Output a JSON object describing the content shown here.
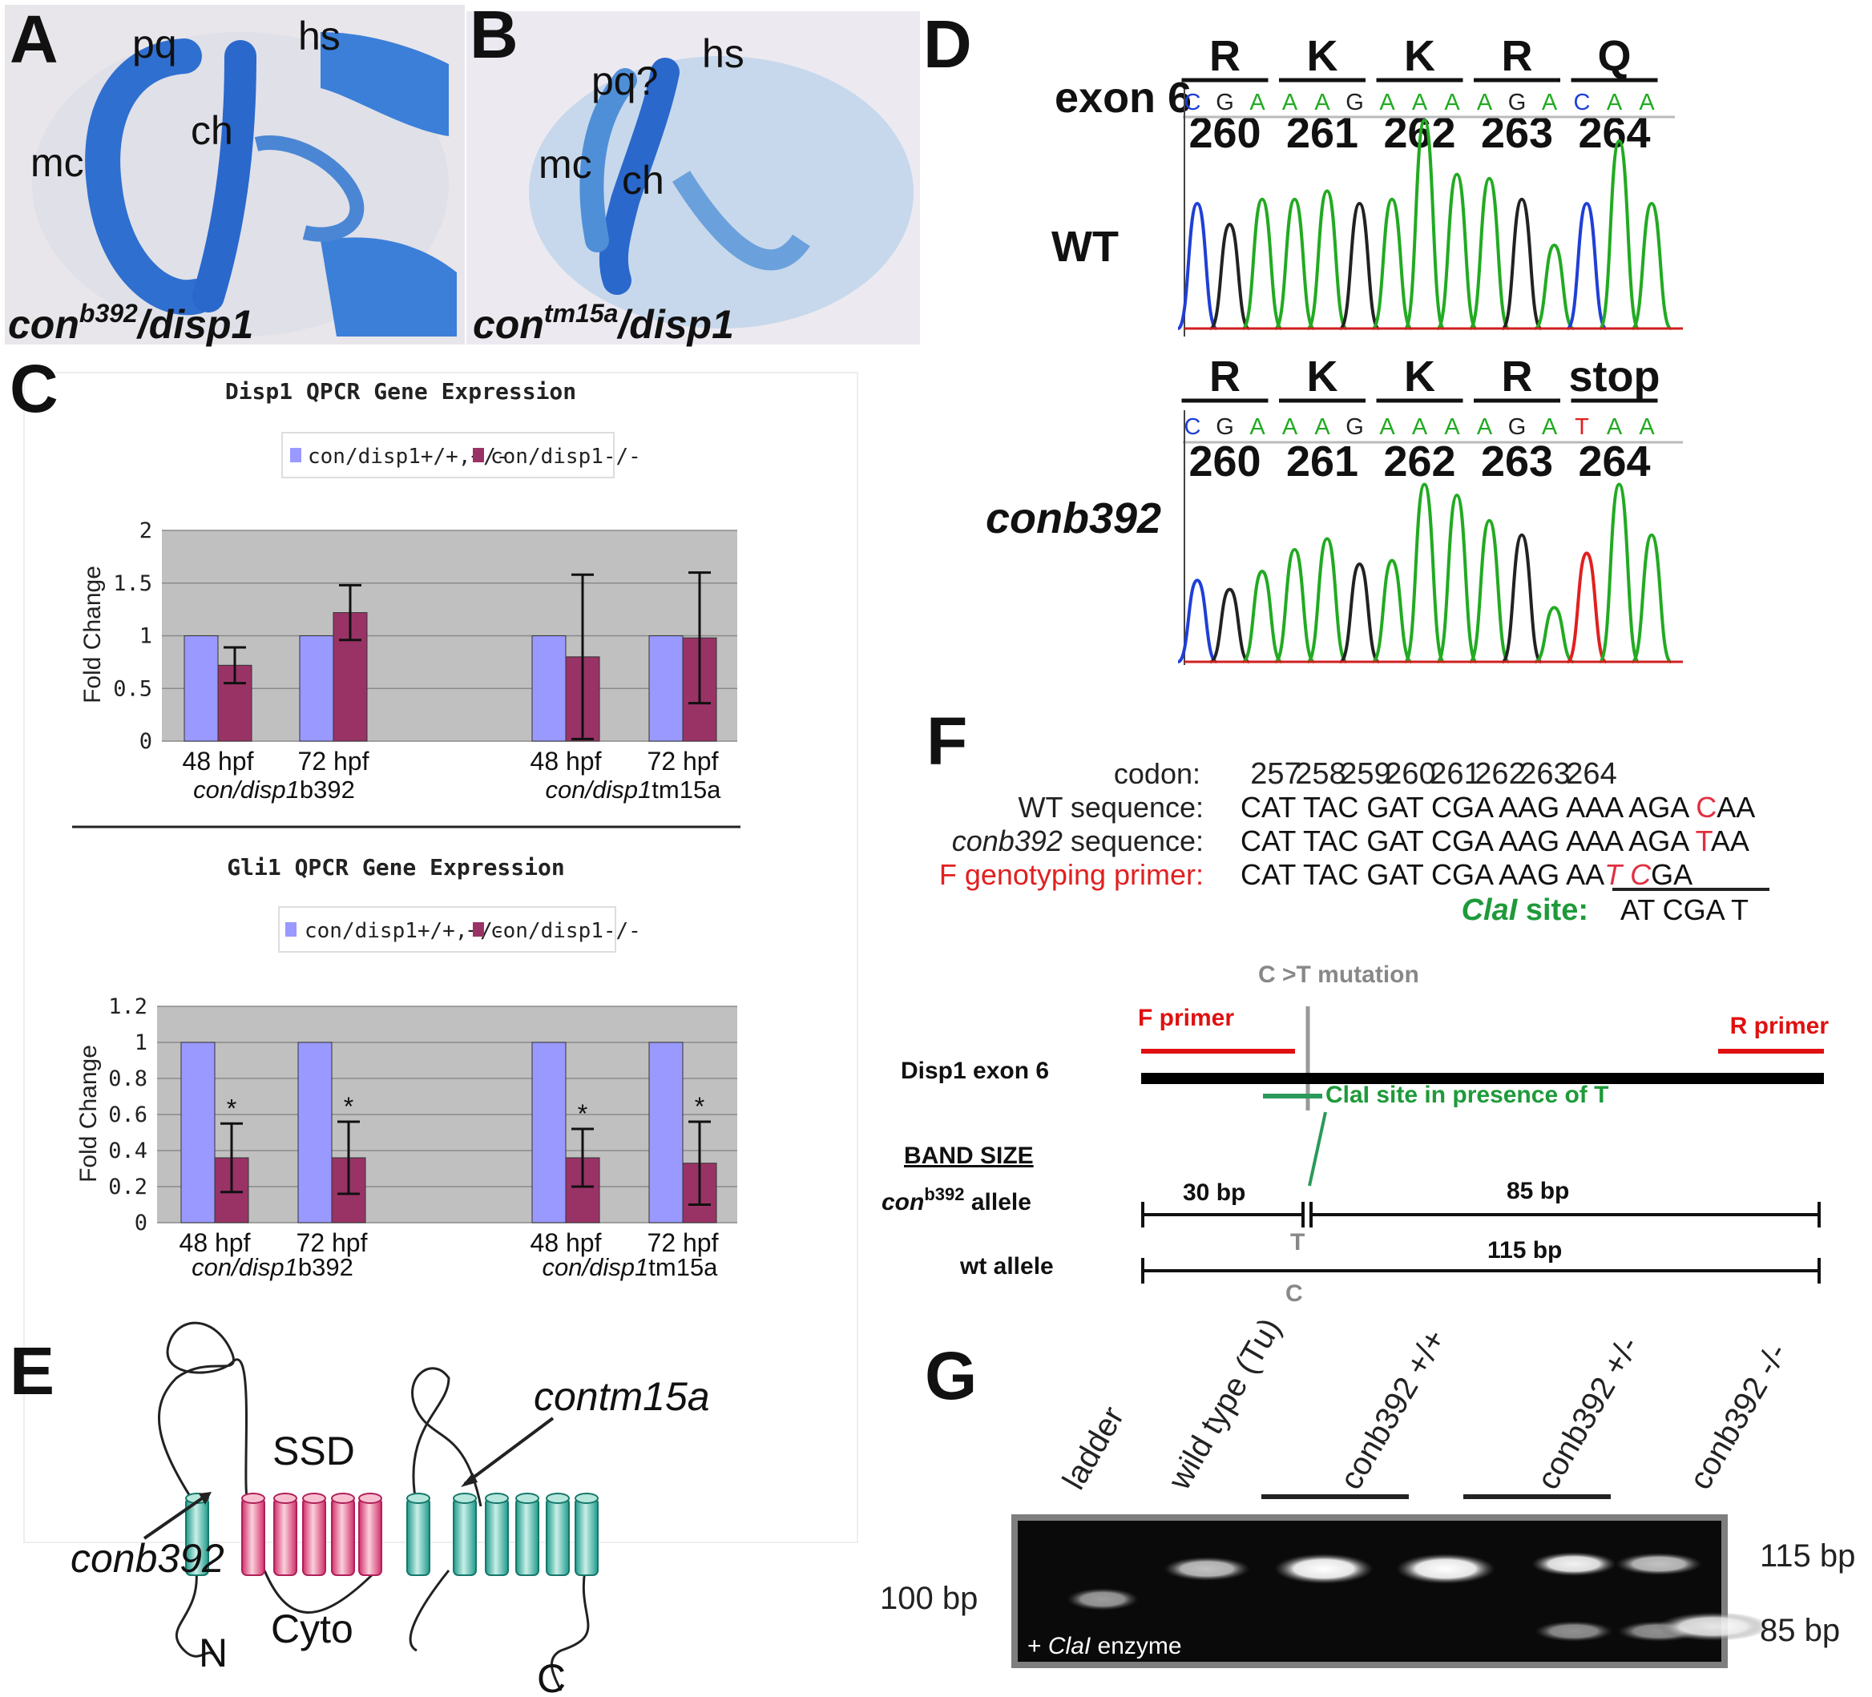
{
  "panels": {
    "A": "A",
    "B": "B",
    "C": "C",
    "D": "D",
    "E": "E",
    "F": "F",
    "G": "G"
  },
  "panel_A": {
    "pq": "pq",
    "hs": "hs",
    "mc": "mc",
    "ch": "ch",
    "genotype_prefix": "con",
    "genotype_sup": "b392",
    "genotype_suffix": "/disp1"
  },
  "panel_B": {
    "pq": "pq?",
    "hs": "hs",
    "mc": "mc",
    "ch": "ch",
    "genotype_prefix": "con",
    "genotype_sup": "tm15a",
    "genotype_suffix": "/disp1"
  },
  "panel_C": {
    "legend": [
      "con/disp1+/+,+/-",
      "con/disp1-/-"
    ],
    "groups": [
      {
        "prefix": "con/",
        "mid": "disp1",
        "suffix": "b392"
      },
      {
        "prefix": "con/",
        "mid": "disp1",
        "suffix": "tm15a"
      }
    ],
    "star": "*"
  },
  "chart_data": [
    {
      "type": "bar",
      "title": "Disp1 QPCR Gene Expression",
      "ylabel": "Fold Change",
      "ylim": [
        0,
        2
      ],
      "yticks": [
        "0",
        "0.5",
        "1",
        "1.5",
        "2"
      ],
      "categories": [
        "48 hpf",
        "72 hpf",
        "48 hpf",
        "72 hpf"
      ],
      "series": [
        {
          "name": "con/disp1+/+,+/-",
          "values": [
            1,
            1,
            1,
            1
          ],
          "color": "#9999ff"
        },
        {
          "name": "con/disp1-/-",
          "values": [
            0.72,
            1.22,
            0.8,
            0.98
          ],
          "error": [
            0.17,
            0.26,
            0.78,
            0.62
          ],
          "color": "#993366"
        }
      ],
      "grid": true,
      "legend_position": "top"
    },
    {
      "type": "bar",
      "title": "Gli1 QPCR Gene Expression",
      "ylabel": "Fold Change",
      "ylim": [
        0,
        1.2
      ],
      "yticks": [
        "0",
        "0.2",
        "0.4",
        "0.6",
        "0.8",
        "1",
        "1.2"
      ],
      "categories": [
        "48 hpf",
        "72 hpf",
        "48 hpf",
        "72 hpf"
      ],
      "series": [
        {
          "name": "con/disp1+/+,+/-",
          "values": [
            1,
            1,
            1,
            1
          ],
          "color": "#9999ff"
        },
        {
          "name": "con/disp1-/-",
          "values": [
            0.36,
            0.36,
            0.36,
            0.33
          ],
          "error": [
            0.19,
            0.2,
            0.16,
            0.23
          ],
          "color": "#993366"
        }
      ],
      "significance": [
        "*",
        "*",
        "*",
        "*"
      ],
      "grid": true,
      "legend_position": "top"
    }
  ],
  "panel_D": {
    "exon_label": "exon 6",
    "wt_label": "WT",
    "mut_label": "conb392",
    "wt_aa": [
      "R",
      "K",
      "K",
      "R",
      "Q"
    ],
    "mut_aa": [
      "R",
      "K",
      "K",
      "R",
      "stop"
    ],
    "codon_numbers": [
      "260",
      "261",
      "262",
      "263",
      "264"
    ],
    "wt_bases": [
      "C",
      "G",
      "A",
      "A",
      "A",
      "G",
      "A",
      "A",
      "A",
      "A",
      "G",
      "A",
      "C",
      "A",
      "A"
    ],
    "mut_bases": [
      "C",
      "G",
      "A",
      "A",
      "A",
      "G",
      "A",
      "A",
      "A",
      "A",
      "G",
      "A",
      "T",
      "A",
      "A"
    ],
    "base_colors": {
      "A": "#22aa22",
      "G": "#222222",
      "C": "#1f3fd6",
      "T": "#e02020"
    }
  },
  "panel_E": {
    "ssd": "SSD",
    "cyto": "Cyto",
    "n": "N",
    "c": "C",
    "mut1": "contm15a",
    "mut2": "conb392"
  },
  "panel_F": {
    "codon_label": "codon:",
    "codons": [
      "257",
      "258",
      "259",
      "260",
      "261",
      "262",
      "263",
      "264"
    ],
    "wt_label": "WT sequence:",
    "wt_seq_prefix": "CAT TAC GAT CGA AAG AAA AGA ",
    "wt_seq_mut": "C",
    "wt_seq_suffix": "AA",
    "mut_label_italic": "conb392",
    "mut_label_rest": " sequence:",
    "mut_seq_prefix": "CAT TAC GAT CGA AAG AAA AGA ",
    "mut_seq_mut": "T",
    "mut_seq_suffix": "AA",
    "primer_label": "F genotyping primer:",
    "primer_prefix": "CAT TAC GAT CGA AAG AA",
    "primer_T": "T",
    "primer_C": "C",
    "primer_suffix": "GA",
    "clai_italic": "ClaI",
    "clai_rest": " site:",
    "clai_seq": "AT CGA T",
    "mutation": "C >T   mutation",
    "f_primer": "F primer",
    "r_primer": "R primer",
    "exon": "Disp1 exon 6",
    "clai_note": "ClaI site in presence of T",
    "band_size": "BAND SIZE",
    "con_allele_pre": "con",
    "con_allele_sup": "b392",
    "con_allele_post": " allele",
    "wt_allele": "wt allele",
    "bp30": "30 bp",
    "bp85": "85 bp",
    "bp115": "115 bp",
    "T": "T",
    "C": "C"
  },
  "panel_G": {
    "lanes": [
      "ladder",
      "wild type (Tu)",
      "conb392 +/+",
      "conb392 +/-",
      "conb392 -/-"
    ],
    "left_marker": "100 bp",
    "right_top": "115 bp",
    "right_bottom": "85 bp",
    "enzyme_prefix": "+ ",
    "enzyme_italic": "ClaI",
    "enzyme_suffix": " enzyme"
  }
}
